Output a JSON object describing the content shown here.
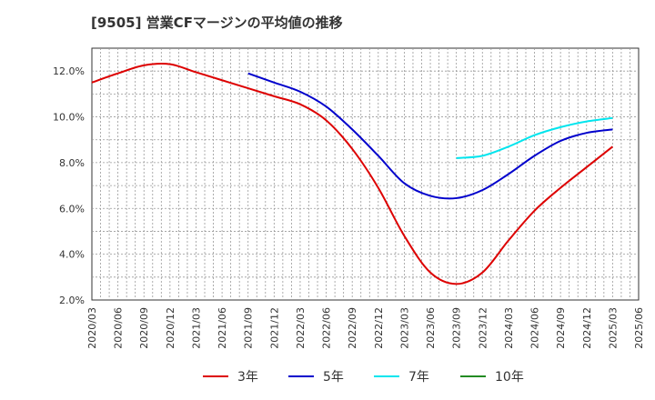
{
  "chart_data": {
    "type": "line",
    "title": "[9505]  営業CFマージンの平均値の推移",
    "xlabel": "",
    "ylabel": "",
    "x": [
      "2020/03",
      "2020/06",
      "2020/09",
      "2020/12",
      "2021/03",
      "2021/06",
      "2021/09",
      "2021/12",
      "2022/03",
      "2022/06",
      "2022/09",
      "2022/12",
      "2023/03",
      "2023/06",
      "2023/09",
      "2023/12",
      "2024/03",
      "2024/06",
      "2024/09",
      "2024/12",
      "2025/03",
      "2025/06"
    ],
    "ylim": [
      2.0,
      13.0
    ],
    "yticks": [
      2.0,
      4.0,
      6.0,
      8.0,
      10.0,
      12.0
    ],
    "ytick_labels": [
      "2.0%",
      "4.0%",
      "6.0%",
      "8.0%",
      "10.0%",
      "12.0%"
    ],
    "grid": true,
    "legend_position": "bottom",
    "series": [
      {
        "name": "3年",
        "color": "#dd0000",
        "values": [
          11.5,
          11.9,
          12.25,
          12.3,
          11.95,
          11.6,
          11.25,
          10.9,
          10.55,
          9.85,
          8.6,
          6.9,
          4.8,
          3.2,
          2.7,
          3.2,
          4.6,
          5.9,
          6.9,
          7.8,
          8.7,
          null
        ]
      },
      {
        "name": "5年",
        "color": "#0000cc",
        "values": [
          null,
          null,
          null,
          null,
          null,
          null,
          11.9,
          11.5,
          11.1,
          10.45,
          9.45,
          8.3,
          7.1,
          6.55,
          6.45,
          6.8,
          7.5,
          8.3,
          8.95,
          9.3,
          9.45,
          null
        ]
      },
      {
        "name": "7年",
        "color": "#00e5ee",
        "values": [
          null,
          null,
          null,
          null,
          null,
          null,
          null,
          null,
          null,
          null,
          null,
          null,
          null,
          null,
          8.2,
          8.3,
          8.7,
          9.2,
          9.55,
          9.8,
          9.95,
          null
        ]
      },
      {
        "name": "10年",
        "color": "#228b22",
        "values": [
          null,
          null,
          null,
          null,
          null,
          null,
          null,
          null,
          null,
          null,
          null,
          null,
          null,
          null,
          null,
          null,
          null,
          null,
          null,
          null,
          null,
          null
        ]
      }
    ]
  }
}
